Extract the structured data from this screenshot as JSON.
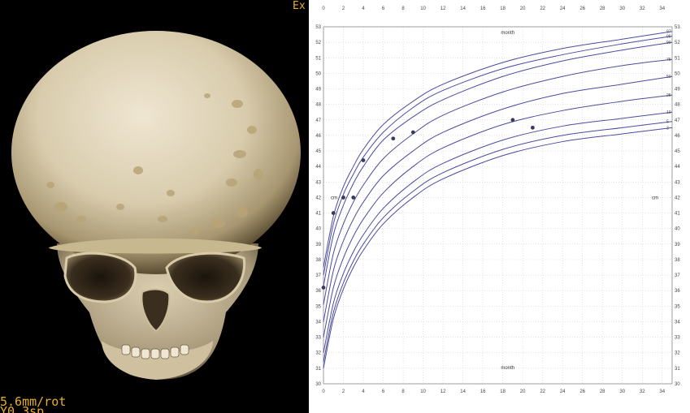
{
  "ct_overlay": {
    "top_right": "Ex",
    "bottom_line1": "5.6mm/rot",
    "bottom_line2": "Y0.3sp"
  },
  "colors": {
    "overlay_text": "#e8b020",
    "curve": "#4b4ba0",
    "point": "#3a3a5a",
    "grid": "#c8c8c8"
  },
  "chart_data": {
    "type": "line",
    "title": "",
    "xlabel": "month",
    "ylabel": "cm",
    "xlim": [
      0,
      35
    ],
    "ylim": [
      30,
      53
    ],
    "x_ticks": [
      0,
      2,
      4,
      6,
      8,
      10,
      12,
      14,
      16,
      18,
      20,
      22,
      24,
      26,
      28,
      30,
      32,
      34
    ],
    "y_ticks": [
      30,
      31,
      32,
      33,
      34,
      35,
      36,
      37,
      38,
      39,
      40,
      41,
      42,
      43,
      44,
      45,
      46,
      47,
      48,
      49,
      50,
      51,
      52,
      53
    ],
    "grid": true,
    "percentile_labels": [
      "97",
      "95",
      "90",
      "75",
      "50",
      "25",
      "10",
      "5",
      "3"
    ],
    "series": [
      {
        "name": "97",
        "x": [
          0,
          1,
          2,
          3,
          4,
          6,
          9,
          12,
          18,
          24,
          30,
          35
        ],
        "y": [
          37.5,
          40.8,
          42.7,
          44.0,
          45.1,
          46.7,
          48.2,
          49.3,
          50.7,
          51.6,
          52.2,
          52.7
        ]
      },
      {
        "name": "95",
        "x": [
          0,
          1,
          2,
          3,
          4,
          6,
          9,
          12,
          18,
          24,
          30,
          35
        ],
        "y": [
          37.0,
          40.3,
          42.2,
          43.5,
          44.6,
          46.2,
          47.8,
          48.9,
          50.3,
          51.2,
          51.9,
          52.4
        ]
      },
      {
        "name": "90",
        "x": [
          0,
          1,
          2,
          3,
          4,
          6,
          9,
          12,
          18,
          24,
          30,
          35
        ],
        "y": [
          36.3,
          39.6,
          41.5,
          42.9,
          44.0,
          45.7,
          47.2,
          48.3,
          49.8,
          50.8,
          51.5,
          52.0
        ]
      },
      {
        "name": "75",
        "x": [
          0,
          1,
          2,
          3,
          4,
          6,
          9,
          12,
          18,
          24,
          30,
          35
        ],
        "y": [
          35.1,
          38.4,
          40.3,
          41.7,
          42.8,
          44.5,
          46.1,
          47.3,
          48.8,
          49.8,
          50.5,
          50.9
        ]
      },
      {
        "name": "50",
        "x": [
          0,
          1,
          2,
          3,
          4,
          6,
          9,
          12,
          18,
          24,
          30,
          35
        ],
        "y": [
          34.0,
          37.3,
          39.2,
          40.6,
          41.7,
          43.4,
          45.0,
          46.2,
          47.7,
          48.7,
          49.3,
          49.8
        ]
      },
      {
        "name": "25",
        "x": [
          0,
          1,
          2,
          3,
          4,
          6,
          9,
          12,
          18,
          24,
          30,
          35
        ],
        "y": [
          33.0,
          36.2,
          38.1,
          39.5,
          40.6,
          42.3,
          44.0,
          45.2,
          46.7,
          47.6,
          48.2,
          48.6
        ]
      },
      {
        "name": "10",
        "x": [
          0,
          1,
          2,
          3,
          4,
          6,
          9,
          12,
          18,
          24,
          30,
          35
        ],
        "y": [
          32.0,
          35.2,
          37.1,
          38.5,
          39.6,
          41.3,
          43.0,
          44.2,
          45.7,
          46.6,
          47.1,
          47.5
        ]
      },
      {
        "name": "5",
        "x": [
          0,
          1,
          2,
          3,
          4,
          6,
          9,
          12,
          18,
          24,
          30,
          35
        ],
        "y": [
          31.4,
          34.6,
          36.5,
          37.9,
          39.0,
          40.7,
          42.4,
          43.6,
          45.1,
          46.0,
          46.5,
          46.9
        ]
      },
      {
        "name": "3",
        "x": [
          0,
          1,
          2,
          3,
          4,
          6,
          9,
          12,
          18,
          24,
          30,
          35
        ],
        "y": [
          31.0,
          34.2,
          36.1,
          37.5,
          38.6,
          40.3,
          42.0,
          43.2,
          44.7,
          45.6,
          46.1,
          46.5
        ]
      }
    ],
    "measurements": {
      "x": [
        0,
        1,
        2,
        3,
        4,
        7,
        9,
        19,
        21
      ],
      "y": [
        36.2,
        41.0,
        42.0,
        42.0,
        44.4,
        45.8,
        46.2,
        47.0,
        46.5
      ]
    }
  }
}
